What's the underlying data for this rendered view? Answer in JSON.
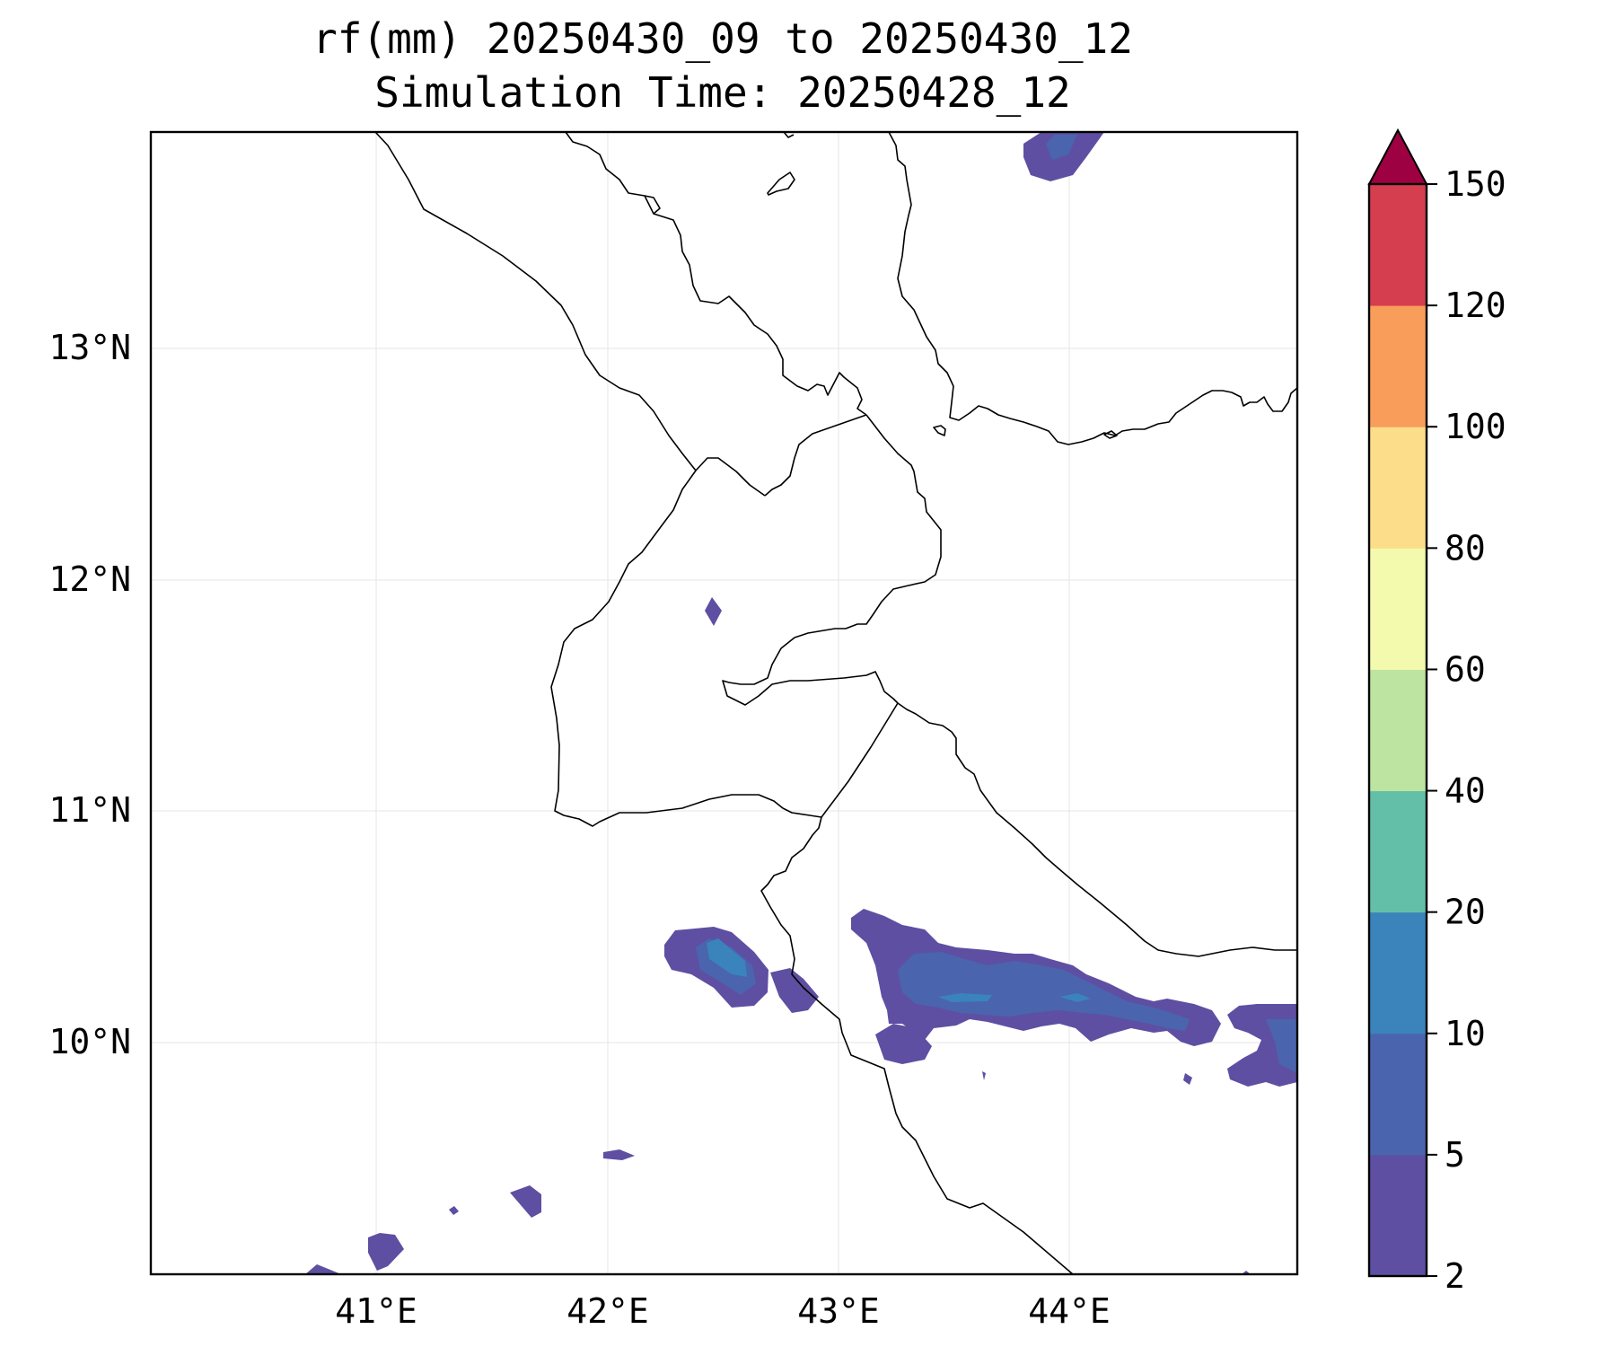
{
  "title": {
    "line1": "rf(mm) 20250430_09 to 20250430_12",
    "line2": "Simulation Time: 20250428_12"
  },
  "map": {
    "lon_ticks": [
      "41°E",
      "42°E",
      "43°E",
      "44°E"
    ],
    "lat_ticks": [
      "13°N",
      "12°N",
      "11°N",
      "10°N"
    ],
    "lon_values": [
      41,
      42,
      43,
      44
    ],
    "lat_values": [
      13,
      12,
      11,
      10
    ],
    "extent": {
      "lon": [
        40,
        45
      ],
      "lat": [
        9,
        13.93
      ]
    },
    "gridlines": true
  },
  "colorbar": {
    "levels": [
      "2",
      "5",
      "10",
      "20",
      "40",
      "60",
      "80",
      "100",
      "120",
      "150"
    ],
    "colors": [
      "#5e4fa2",
      "#4a64ae",
      "#3a83bb",
      "#64bfa9",
      "#bde4a0",
      "#f3faae",
      "#fcde8a",
      "#f99d5b",
      "#d53e4f"
    ],
    "extend_color": "#9e0142",
    "extend": "max"
  },
  "rain_colors": {
    "low": "#5e4fa2",
    "mid": "#4a64ae",
    "high": "#3a83bb"
  }
}
